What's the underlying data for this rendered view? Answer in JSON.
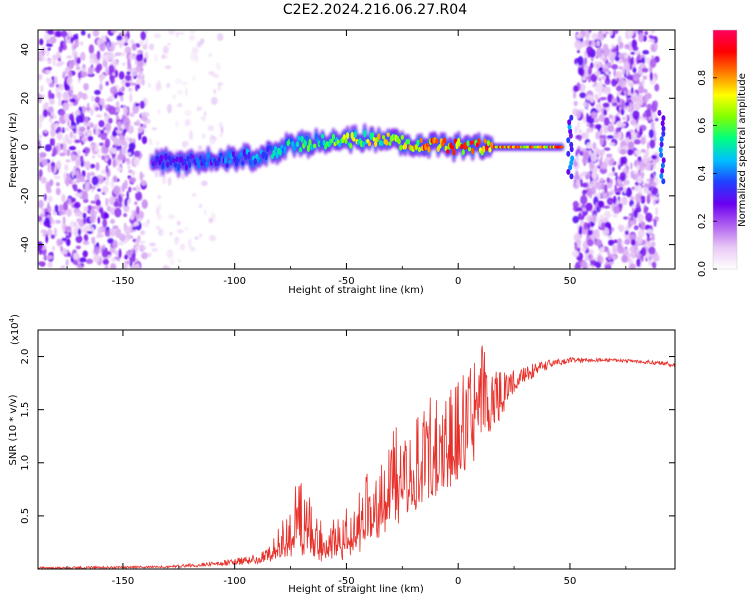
{
  "figure": {
    "title": "C2E2.2024.216.06.27.R04"
  },
  "chart_data": [
    {
      "type": "heatmap",
      "panel": "spectrogram",
      "xlabel": "Height of straight line (km)",
      "ylabel": "Frequency (Hz)",
      "xlim": [
        -188,
        97
      ],
      "ylim": [
        -50,
        48
      ],
      "xticks": [
        -150,
        -100,
        -50,
        0,
        50
      ],
      "yticks": [
        -40,
        -20,
        0,
        20,
        40
      ],
      "colorbar": {
        "label": "Normalized spectral amplitude",
        "range": [
          0,
          1
        ],
        "ticks": [
          0.0,
          0.2,
          0.4,
          0.6,
          0.8
        ],
        "colormap": [
          "#ffffff",
          "#e8c8f5",
          "#b060f0",
          "#6a00f0",
          "#2040ff",
          "#00c0ff",
          "#00ff80",
          "#80ff00",
          "#ffff00",
          "#ff8000",
          "#ff0000",
          "#ff0060"
        ]
      },
      "signal_track": [
        {
          "x": -137,
          "y": -6,
          "amp": 0.35
        },
        {
          "x": -120,
          "y": -6,
          "amp": 0.4
        },
        {
          "x": -100,
          "y": -5,
          "amp": 0.45
        },
        {
          "x": -85,
          "y": -3,
          "amp": 0.5
        },
        {
          "x": -75,
          "y": 1,
          "amp": 0.6
        },
        {
          "x": -60,
          "y": 2,
          "amp": 0.65
        },
        {
          "x": -45,
          "y": 3,
          "amp": 0.75
        },
        {
          "x": -35,
          "y": 4,
          "amp": 0.8
        },
        {
          "x": -25,
          "y": 2,
          "amp": 0.85
        },
        {
          "x": -15,
          "y": 1,
          "amp": 0.9
        },
        {
          "x": 0,
          "y": 0,
          "amp": 0.95
        },
        {
          "x": 15,
          "y": 0,
          "amp": 1.0
        },
        {
          "x": 47,
          "y": 0,
          "amp": 1.0
        }
      ],
      "noise_regions": [
        {
          "x": [
            -188,
            -140
          ],
          "density": "high"
        },
        {
          "x": [
            -140,
            -105
          ],
          "density": "low"
        },
        {
          "x": [
            52,
            89
          ],
          "density": "high"
        }
      ]
    },
    {
      "type": "line",
      "panel": "snr",
      "xlabel": "Height of straight line (km)",
      "ylabel": "SNR (10 * v/v)",
      "y_multiplier_label": "(x10",
      "y_multiplier_exp": "4",
      "y_multiplier_close": ")",
      "xlim": [
        -188,
        97
      ],
      "ylim": [
        0,
        2.25
      ],
      "xticks": [
        -150,
        -100,
        -50,
        0,
        50
      ],
      "yticks": [
        0.5,
        1.0,
        1.5,
        2.0
      ],
      "series": [
        {
          "color": "#e8302a",
          "envelope_x": [
            -188,
            -130,
            -115,
            -105,
            -95,
            -85,
            -80,
            -75,
            -70,
            -65,
            -60,
            -55,
            -50,
            -45,
            -40,
            -35,
            -30,
            -25,
            -20,
            -15,
            -10,
            -5,
            0,
            5,
            10,
            15,
            20,
            25,
            30,
            35,
            40,
            45,
            50,
            60,
            70,
            80,
            90,
            97
          ],
          "envelope_lo": [
            0.0,
            0.01,
            0.02,
            0.03,
            0.04,
            0.06,
            0.08,
            0.1,
            0.12,
            0.1,
            0.06,
            0.06,
            0.08,
            0.12,
            0.2,
            0.3,
            0.38,
            0.45,
            0.52,
            0.6,
            0.68,
            0.75,
            0.82,
            0.95,
            1.1,
            1.3,
            1.45,
            1.65,
            1.75,
            1.82,
            1.88,
            1.92,
            1.93,
            1.95,
            1.95,
            1.94,
            1.92,
            1.9
          ],
          "envelope_hi": [
            0.02,
            0.03,
            0.06,
            0.08,
            0.12,
            0.2,
            0.4,
            0.65,
            0.98,
            0.62,
            0.4,
            0.48,
            0.6,
            0.7,
            0.95,
            1.12,
            1.32,
            1.4,
            1.45,
            1.6,
            1.65,
            1.75,
            1.8,
            1.9,
            2.22,
            1.9,
            1.85,
            1.88,
            1.9,
            1.95,
            1.97,
            1.98,
            1.99,
            1.99,
            1.98,
            1.97,
            1.96,
            1.95
          ]
        }
      ]
    }
  ]
}
